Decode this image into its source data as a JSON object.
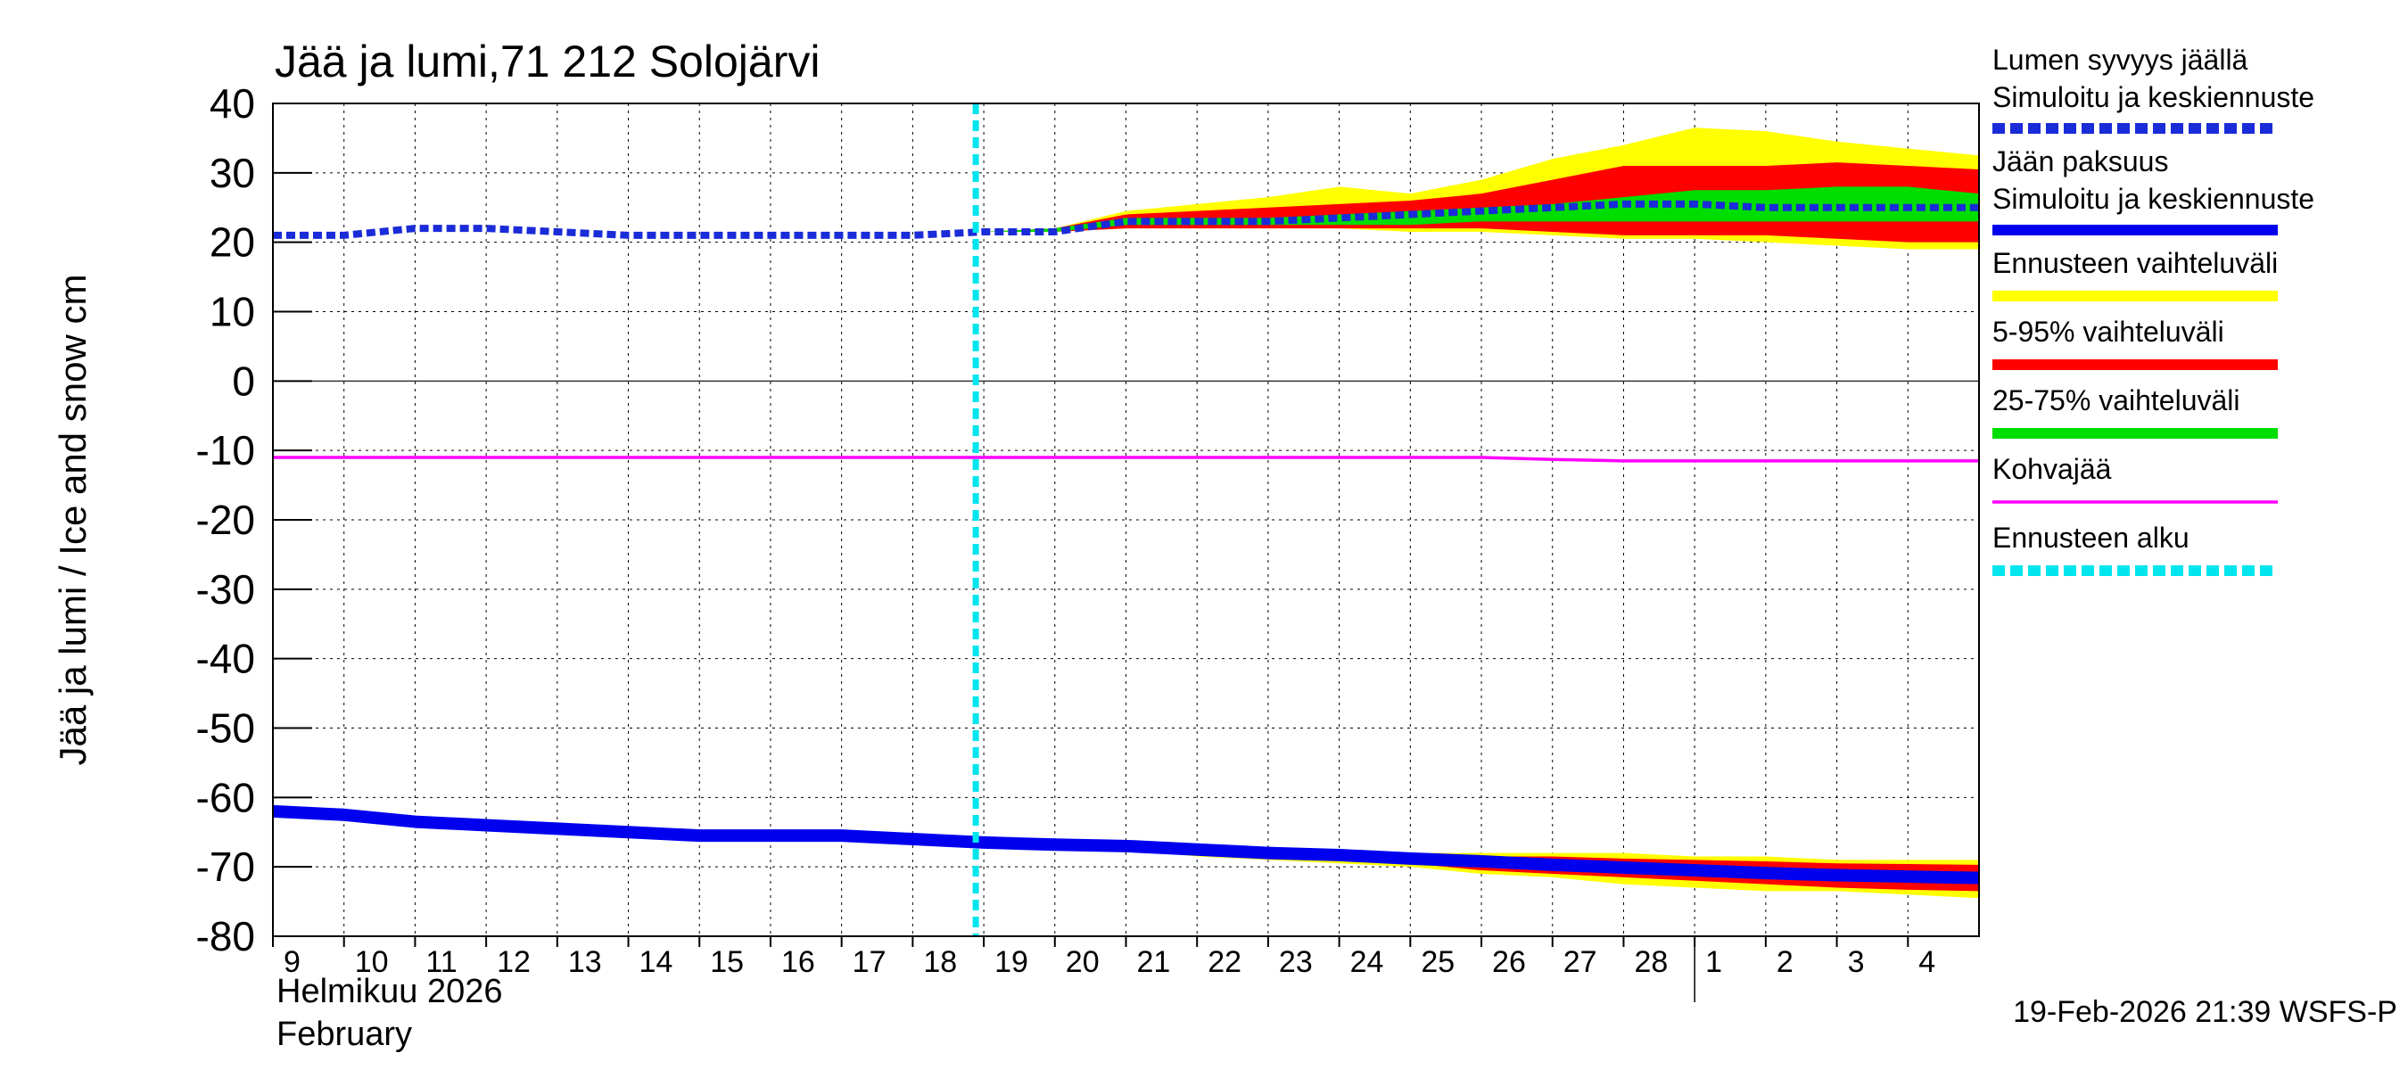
{
  "chart_data": {
    "type": "area",
    "title": "Jää ja lumi,71 212 Solojärvi",
    "ylabel": "Jää ja lumi / Ice and snow    cm",
    "ylim": [
      -80,
      40
    ],
    "yticks": [
      40,
      30,
      20,
      10,
      0,
      -10,
      -20,
      -30,
      -40,
      -50,
      -60,
      -70,
      -80
    ],
    "xlim": [
      0,
      24
    ],
    "x_tick_labels": [
      "9",
      "10",
      "11",
      "12",
      "13",
      "14",
      "15",
      "16",
      "17",
      "18",
      "19",
      "20",
      "21",
      "22",
      "23",
      "24",
      "25",
      "26",
      "27",
      "28",
      "1",
      "2",
      "3",
      "4"
    ],
    "xlabel_month_fi": "Helmikuu  2026",
    "xlabel_month_en": "February",
    "month_break_day": 20,
    "forecast_start_day": 10,
    "timestamp": "19-Feb-2026 21:39 WSFS-P",
    "colors": {
      "snow": "#1a2bd8",
      "ice": "#0000ee",
      "range_full": "#ffff00",
      "range_5_95": "#ff0000",
      "range_25_75": "#00dd00",
      "slush": "#ff00ff",
      "forecast_start": "#00e5ee",
      "grid": "#000000"
    },
    "legend": [
      {
        "line1": "Lumen syvyys jäällä",
        "line2": "Simuloitu ja keskiennuste",
        "style": "dashed-thick",
        "color": "#1a2bd8"
      },
      {
        "line1": "Jään paksuus",
        "line2": "Simuloitu ja keskiennuste",
        "style": "solid-thick",
        "color": "#0000ee"
      },
      {
        "line1": "Ennusteen vaihteluväli",
        "line2": "",
        "style": "solid-thick",
        "color": "#ffff00"
      },
      {
        "line1": "5-95% vaihteluväli",
        "line2": "",
        "style": "solid-thick",
        "color": "#ff0000"
      },
      {
        "line1": "25-75% vaihteluväli",
        "line2": "",
        "style": "solid-thick",
        "color": "#00dd00"
      },
      {
        "line1": "Kohvajää",
        "line2": "",
        "style": "solid-thin",
        "color": "#ff00ff"
      },
      {
        "line1": "Ennusteen alku",
        "line2": "",
        "style": "dashed-thick",
        "color": "#00e5ee"
      }
    ],
    "series": [
      {
        "name": "Lumen syvyys jäällä (simuloitu ja keskiennuste)",
        "x": [
          0,
          1,
          2,
          3,
          4,
          5,
          6,
          7,
          8,
          9,
          10,
          11,
          12,
          13,
          14,
          15,
          16,
          17,
          18,
          19,
          20,
          21,
          22,
          23,
          24
        ],
        "y": [
          21,
          21,
          22,
          22,
          21.5,
          21,
          21,
          21,
          21,
          21,
          21.5,
          21.5,
          23,
          23,
          23,
          23.5,
          24,
          24.5,
          25,
          25.5,
          25.5,
          25,
          25,
          25,
          25
        ]
      },
      {
        "name": "Jään paksuus (simuloitu ja keskiennuste)",
        "x": [
          0,
          1,
          2,
          3,
          4,
          5,
          6,
          7,
          8,
          9,
          10,
          11,
          12,
          13,
          14,
          15,
          16,
          17,
          18,
          19,
          20,
          21,
          22,
          23,
          24
        ],
        "y": [
          -62,
          -62.5,
          -63.5,
          -64,
          -64.5,
          -65,
          -65.5,
          -65.5,
          -65.5,
          -66,
          -66.5,
          -66.8,
          -67,
          -67.5,
          -68,
          -68.3,
          -68.8,
          -69.2,
          -69.7,
          -70.1,
          -70.5,
          -70.9,
          -71.2,
          -71.4,
          -71.6
        ]
      },
      {
        "name": "Kohvajää",
        "x": [
          0,
          1,
          2,
          3,
          4,
          5,
          6,
          7,
          8,
          9,
          10,
          11,
          12,
          13,
          14,
          15,
          16,
          17,
          18,
          19,
          20,
          21,
          22,
          23,
          24
        ],
        "y": [
          -11,
          -11,
          -11,
          -11,
          -11,
          -11,
          -11,
          -11,
          -11,
          -11,
          -11,
          -11,
          -11,
          -11,
          -11,
          -11,
          -11,
          -11,
          -11.3,
          -11.5,
          -11.5,
          -11.5,
          -11.5,
          -11.5,
          -11.5
        ]
      }
    ],
    "bands": {
      "x": [
        10,
        11,
        12,
        13,
        14,
        15,
        16,
        17,
        18,
        19,
        20,
        21,
        22,
        23,
        24
      ],
      "snow": {
        "full": {
          "upper": [
            21.5,
            22,
            24.5,
            25.5,
            26.5,
            28,
            27,
            29,
            32,
            34,
            36.5,
            36,
            34.5,
            33.5,
            32.5
          ],
          "lower": [
            21.5,
            21.5,
            22,
            22,
            22,
            22,
            21.5,
            21.5,
            21,
            20.5,
            20.5,
            20,
            19.5,
            19,
            19
          ]
        },
        "p5_95": {
          "upper": [
            21.5,
            22,
            24,
            24.5,
            25,
            25.5,
            26,
            27,
            29,
            31,
            31,
            31,
            31.5,
            31,
            30.5
          ],
          "lower": [
            21.5,
            21.5,
            22,
            22,
            22,
            22,
            22,
            22,
            21.5,
            21,
            21,
            21,
            20.5,
            20,
            20
          ]
        },
        "p25_75": {
          "upper": [
            21.5,
            22,
            23.5,
            23.5,
            23.5,
            24,
            24.5,
            25,
            25.5,
            26.5,
            27.5,
            27.5,
            28,
            28,
            27
          ],
          "lower": [
            21.5,
            21.5,
            22.5,
            22.5,
            22.5,
            22.5,
            22.5,
            23,
            23,
            23,
            23,
            23,
            23,
            23,
            23
          ]
        }
      },
      "ice": {
        "full": {
          "upper": [
            -66.5,
            -66.8,
            -67,
            -67.5,
            -68,
            -68,
            -68,
            -68,
            -68,
            -68,
            -68.5,
            -68.5,
            -69,
            -69,
            -69
          ],
          "lower": [
            -66.5,
            -66.8,
            -67.5,
            -68.5,
            -69,
            -69.5,
            -70,
            -71,
            -71.5,
            -72.5,
            -73,
            -73.5,
            -73.5,
            -74,
            -74.5
          ]
        },
        "p5_95": {
          "upper": [
            -66.5,
            -66.8,
            -67,
            -67.5,
            -68,
            -68,
            -68.3,
            -68.5,
            -68.5,
            -68.8,
            -69,
            -69.2,
            -69.5,
            -69.6,
            -69.7
          ],
          "lower": [
            -66.5,
            -66.8,
            -67.3,
            -68,
            -68.5,
            -69,
            -69.5,
            -70.5,
            -71,
            -71.5,
            -72,
            -72.5,
            -73,
            -73.3,
            -73.5
          ]
        },
        "p25_75": {
          "upper": [
            -66.5,
            -66.8,
            -67,
            -67.5,
            -68,
            -68.3,
            -68.8,
            -69.2,
            -69.6,
            -70,
            -70.3,
            -70.6,
            -70.9,
            -71.1,
            -71.2
          ],
          "lower": [
            -66.5,
            -66.8,
            -67,
            -67.5,
            -68,
            -68.3,
            -68.8,
            -69.3,
            -69.8,
            -70.3,
            -70.8,
            -71.2,
            -71.5,
            -71.7,
            -72
          ]
        }
      }
    }
  }
}
